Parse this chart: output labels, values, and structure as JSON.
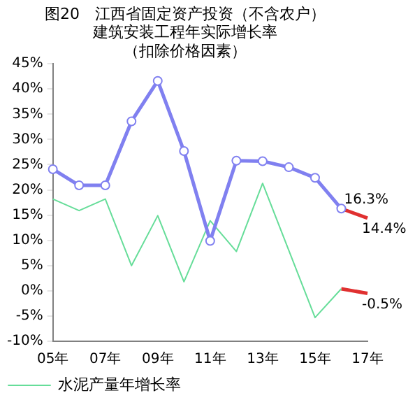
{
  "chart_data": {
    "type": "line",
    "title": [
      "图20　江西省固定资产投资（不含农户）",
      "建筑安装工程年实际增长率",
      "（扣除价格因素）"
    ],
    "categories": [
      "05年",
      null,
      "07年",
      null,
      "09年",
      null,
      "11年",
      null,
      "13年",
      null,
      "15年",
      null,
      "17年"
    ],
    "series": [
      {
        "color": "#8080f0",
        "marker": "circle",
        "values": [
          24.1,
          20.9,
          20.9,
          33.6,
          41.6,
          27.7,
          9.9,
          25.8,
          25.7,
          24.5,
          22.4,
          16.3,
          null
        ]
      },
      {
        "color": "#e03030",
        "marker": "none",
        "values": [
          null,
          null,
          null,
          null,
          null,
          null,
          null,
          null,
          null,
          null,
          null,
          16.3,
          14.4
        ],
        "value_labels": [
          null,
          null,
          null,
          null,
          null,
          null,
          null,
          null,
          null,
          null,
          null,
          "16.3%",
          "14.4%"
        ]
      },
      {
        "name": "水泥产量年增长率",
        "color": "#66dd99",
        "marker": "none",
        "values": [
          18.2,
          15.9,
          18.2,
          5.0,
          14.9,
          1.8,
          13.9,
          7.8,
          21.3,
          8.0,
          -5.3,
          0.4,
          null
        ]
      },
      {
        "color": "#e03030",
        "marker": "none",
        "values": [
          null,
          null,
          null,
          null,
          null,
          null,
          null,
          null,
          null,
          null,
          null,
          0.4,
          -0.5
        ],
        "value_labels": [
          null,
          null,
          null,
          null,
          null,
          null,
          null,
          null,
          null,
          null,
          null,
          null,
          "-0.5%"
        ]
      }
    ],
    "ylim": [
      -10,
      45
    ],
    "yticks": [
      {
        "value": -10,
        "label": "-10%"
      },
      {
        "value": -5,
        "label": "-5%"
      },
      {
        "value": 0,
        "label": "0%"
      },
      {
        "value": 5,
        "label": "5%"
      },
      {
        "value": 10,
        "label": "10%"
      },
      {
        "value": 15,
        "label": "15%"
      },
      {
        "value": 20,
        "label": "20%"
      },
      {
        "value": 25,
        "label": "25%"
      },
      {
        "value": 30,
        "label": "30%"
      },
      {
        "value": 35,
        "label": "35%"
      },
      {
        "value": 40,
        "label": "40%"
      },
      {
        "value": 45,
        "label": "45%"
      }
    ],
    "grid": false,
    "legend": "bottom left"
  }
}
